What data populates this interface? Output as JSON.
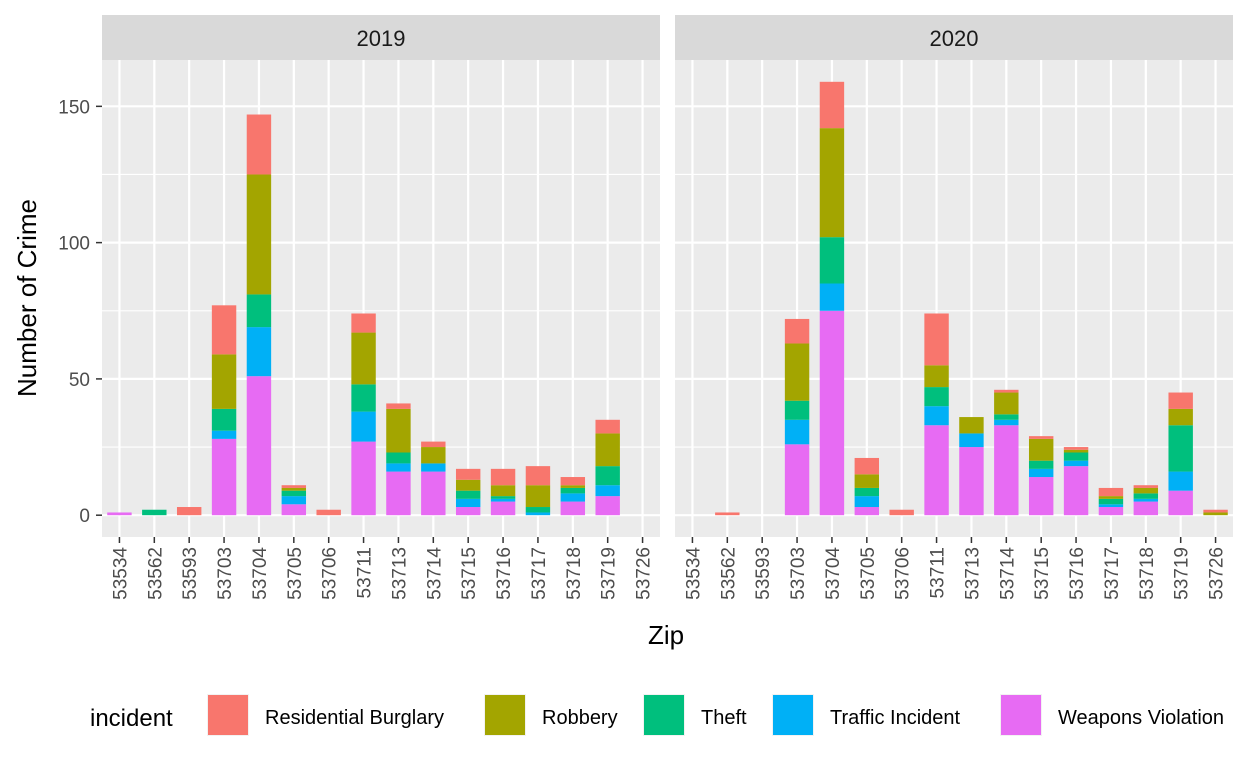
{
  "chart_data": {
    "type": "bar",
    "stacked": true,
    "facets": [
      "2019",
      "2020"
    ],
    "xlabel": "Zip",
    "ylabel": "Number of Crime",
    "ylim": [
      -8,
      167
    ],
    "yticks": [
      0,
      50,
      100,
      150
    ],
    "grid": true,
    "legend_position": "bottom",
    "legend_title": "incident",
    "categories": [
      "53534",
      "53562",
      "53593",
      "53703",
      "53704",
      "53705",
      "53706",
      "53711",
      "53713",
      "53714",
      "53715",
      "53716",
      "53717",
      "53718",
      "53719",
      "53726"
    ],
    "stack_order": [
      "Weapons Violation",
      "Traffic Incident",
      "Theft",
      "Robbery",
      "Residential Burglary"
    ],
    "series": [
      {
        "name": "Residential Burglary",
        "color": "#F8766D"
      },
      {
        "name": "Robbery",
        "color": "#A3A500"
      },
      {
        "name": "Theft",
        "color": "#00BF7D"
      },
      {
        "name": "Traffic Incident",
        "color": "#00B0F6"
      },
      {
        "name": "Weapons Violation",
        "color": "#E76BF3"
      }
    ],
    "data": {
      "2019": {
        "Weapons Violation": [
          1,
          0,
          0,
          28,
          51,
          4,
          0,
          27,
          16,
          16,
          3,
          5,
          0,
          5,
          7,
          0
        ],
        "Traffic Incident": [
          0,
          0,
          0,
          3,
          18,
          3,
          0,
          11,
          3,
          3,
          3,
          1,
          1,
          3,
          4,
          0
        ],
        "Theft": [
          0,
          2,
          0,
          8,
          12,
          2,
          0,
          10,
          4,
          0,
          3,
          1,
          2,
          2,
          7,
          0
        ],
        "Robbery": [
          0,
          0,
          0,
          20,
          44,
          1,
          0,
          19,
          16,
          6,
          4,
          4,
          8,
          1,
          12,
          0
        ],
        "Residential Burglary": [
          0,
          0,
          3,
          18,
          22,
          1,
          2,
          7,
          2,
          2,
          4,
          6,
          7,
          3,
          5,
          0
        ]
      },
      "2020": {
        "Weapons Violation": [
          0,
          0,
          0,
          26,
          75,
          3,
          0,
          33,
          25,
          33,
          14,
          18,
          3,
          5,
          9,
          0
        ],
        "Traffic Incident": [
          0,
          0,
          0,
          9,
          10,
          4,
          0,
          7,
          5,
          2,
          3,
          2,
          1,
          1,
          7,
          0
        ],
        "Theft": [
          0,
          0,
          0,
          7,
          17,
          3,
          0,
          7,
          0,
          2,
          3,
          3,
          2,
          2,
          17,
          0
        ],
        "Robbery": [
          0,
          0,
          0,
          21,
          40,
          5,
          0,
          8,
          6,
          8,
          8,
          1,
          1,
          2,
          6,
          1
        ],
        "Residential Burglary": [
          0,
          1,
          0,
          9,
          17,
          6,
          2,
          19,
          0,
          1,
          1,
          1,
          3,
          1,
          6,
          1
        ]
      }
    }
  }
}
